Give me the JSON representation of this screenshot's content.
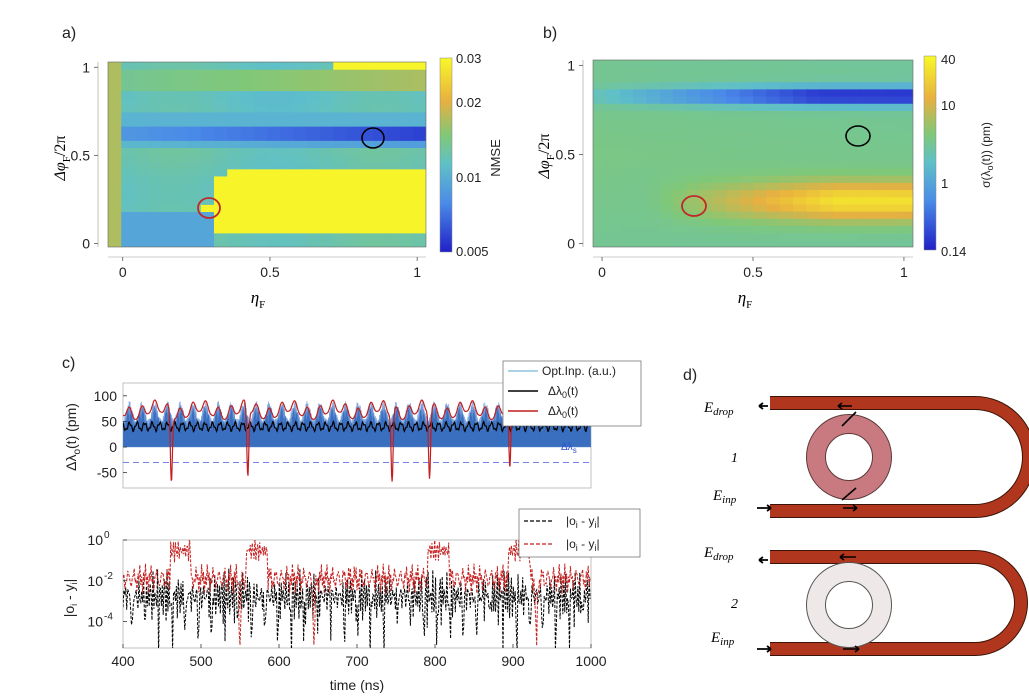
{
  "colors": {
    "low": "#2b2bd8",
    "mid": "#5fb4e0",
    "green": "#7fc98a",
    "orange": "#e8b040",
    "high": "#f8f830",
    "red_circle": "#c0282a",
    "black": "#000000",
    "signal": "#3a6fc0",
    "red_line": "#c41e1e",
    "waveguide": "#b0371e",
    "ring1": "#c97a80",
    "ring2": "#efe8e8"
  },
  "panel_labels": {
    "a": "a)",
    "b": "b)",
    "c": "c)",
    "d": "d)"
  },
  "chart_data": [
    {
      "id": "a",
      "type": "heatmap",
      "title": "",
      "xlabel": "η_F",
      "ylabel": "Δφ_F/2π",
      "x_ticks": [
        "0",
        "0.5",
        "1"
      ],
      "y_ticks": [
        "0",
        "0.5",
        "1"
      ],
      "xlim": [
        -0.05,
        1.03
      ],
      "ylim": [
        -0.02,
        1.03
      ],
      "colorbar": {
        "label": "NMSE",
        "ticks": [
          "0.03",
          "0.02",
          "0.01",
          "0.005"
        ],
        "scale": "log",
        "range": [
          0.005,
          0.03
        ]
      },
      "markers": [
        {
          "x": 0.85,
          "y": 0.6,
          "color": "black"
        },
        {
          "x": 0.3,
          "y": 0.2,
          "color": "red"
        }
      ]
    },
    {
      "id": "b",
      "type": "heatmap",
      "title": "",
      "xlabel": "η_F",
      "ylabel": "Δφ_F/2π",
      "x_ticks": [
        "0",
        "0.5",
        "1"
      ],
      "y_ticks": [
        "0",
        "0.5",
        "1"
      ],
      "xlim": [
        -0.03,
        1.03
      ],
      "ylim": [
        -0.02,
        1.03
      ],
      "colorbar": {
        "label": "σ(λo(t)) (pm)",
        "ticks": [
          "40",
          "10",
          "1",
          "0.14"
        ],
        "scale": "log",
        "range": [
          0.14,
          40
        ]
      },
      "markers": [
        {
          "x": 0.85,
          "y": 0.6,
          "color": "black"
        },
        {
          "x": 0.3,
          "y": 0.2,
          "color": "red"
        }
      ]
    },
    {
      "id": "c-top",
      "type": "line",
      "ylabel": "Δλo(t) (pm)",
      "y_ticks": [
        "100",
        "50",
        "0",
        "-50"
      ],
      "xlim": [
        400,
        1000
      ],
      "ylim": [
        -80,
        125
      ],
      "annotation": "Δλs",
      "threshold": -30,
      "series": [
        {
          "name": "Opt.Inp. (a.u.)",
          "color": "signal"
        },
        {
          "name": "Δλ0(t)",
          "color": "black",
          "mean": 40
        },
        {
          "name": "Δλ0(t)",
          "color": "red",
          "mean": 60
        }
      ],
      "dips_at": [
        462,
        560,
        745,
        793,
        896
      ]
    },
    {
      "id": "c-bottom",
      "type": "line",
      "xlabel": "time (ns)",
      "ylabel": "|oi - yi|",
      "x_ticks": [
        "400",
        "500",
        "600",
        "700",
        "800",
        "900",
        "1000"
      ],
      "y_ticks": [
        "10^0",
        "10^-2",
        "10^-4"
      ],
      "xlim": [
        400,
        1000
      ],
      "yscale": "log",
      "series": [
        {
          "name": "|oi - yi|",
          "color": "black",
          "style": "dashed"
        },
        {
          "name": "|oi - yi|",
          "color": "red",
          "style": "dashed"
        }
      ]
    }
  ],
  "diagram": {
    "top": {
      "drop": "Edrop",
      "inp": "Einp",
      "number": "1"
    },
    "bottom": {
      "drop": "Edrop",
      "inp": "Einp",
      "number": "2"
    }
  }
}
